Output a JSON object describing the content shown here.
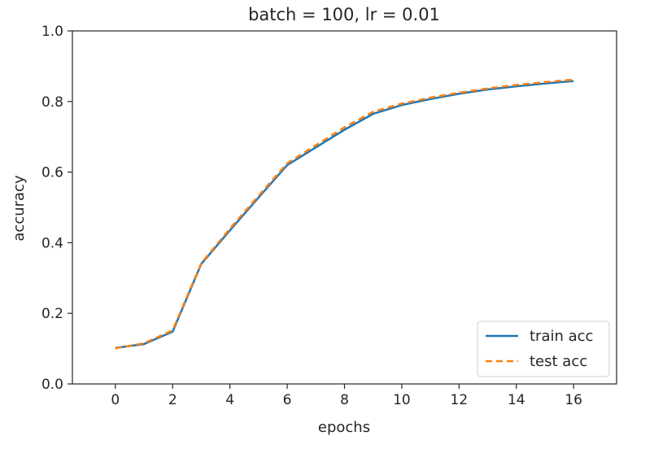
{
  "chart_data": {
    "type": "line",
    "title": "batch = 100, lr = 0.01",
    "xlabel": "epochs",
    "ylabel": "accuracy",
    "xlim": [
      -1.5,
      17.5
    ],
    "ylim": [
      0.0,
      1.0
    ],
    "xticks": [
      0,
      2,
      4,
      6,
      8,
      10,
      12,
      14,
      16
    ],
    "yticks": [
      0.0,
      0.2,
      0.4,
      0.6,
      0.8,
      1.0
    ],
    "xtick_labels": [
      "0",
      "2",
      "4",
      "6",
      "8",
      "10",
      "12",
      "14",
      "16"
    ],
    "ytick_labels": [
      "0.0",
      "0.2",
      "0.4",
      "0.6",
      "0.8",
      "1.0"
    ],
    "grid": false,
    "legend_position": "lower-right",
    "x": [
      0,
      1,
      2,
      3,
      4,
      5,
      6,
      7,
      8,
      9,
      10,
      11,
      12,
      13,
      14,
      15,
      16
    ],
    "series": [
      {
        "name": "train acc",
        "color": "#1f77b4",
        "style": "solid",
        "values": [
          0.102,
          0.113,
          0.148,
          0.34,
          0.435,
          0.528,
          0.62,
          0.67,
          0.72,
          0.765,
          0.79,
          0.807,
          0.822,
          0.834,
          0.843,
          0.851,
          0.858
        ]
      },
      {
        "name": "test acc",
        "color": "#ff7f0e",
        "style": "dashed",
        "values": [
          0.101,
          0.115,
          0.152,
          0.342,
          0.44,
          0.533,
          0.625,
          0.676,
          0.727,
          0.771,
          0.794,
          0.811,
          0.825,
          0.837,
          0.847,
          0.855,
          0.862
        ]
      }
    ]
  }
}
